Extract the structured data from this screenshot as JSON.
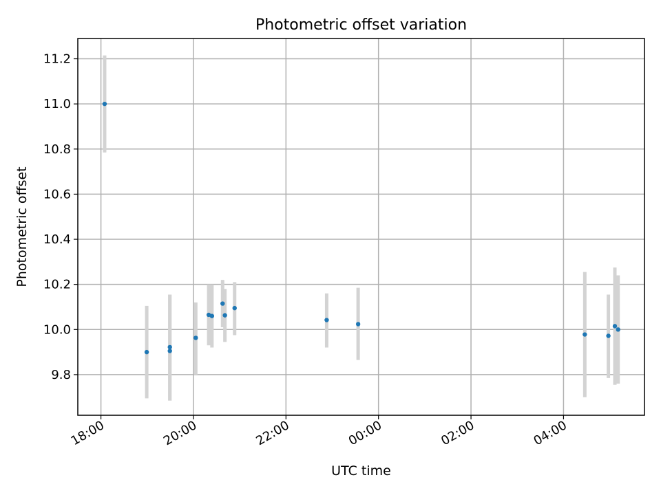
{
  "chart_data": {
    "type": "scatter",
    "title": "Photometric offset variation",
    "xlabel": "UTC time",
    "ylabel": "Photometric offset",
    "x_unit": "hours since 18:00 UTC",
    "xlim": [
      -0.5,
      11.75
    ],
    "ylim": [
      9.62,
      11.29
    ],
    "grid": true,
    "colors": {
      "point": "#1f77b4",
      "errorbar": "#d3d3d3",
      "grid": "#b0b0b0"
    },
    "x_ticks": [
      {
        "value": 0,
        "label": "18:00"
      },
      {
        "value": 2,
        "label": "20:00"
      },
      {
        "value": 4,
        "label": "22:00"
      },
      {
        "value": 6,
        "label": "00:00"
      },
      {
        "value": 8,
        "label": "02:00"
      },
      {
        "value": 10,
        "label": "04:00"
      }
    ],
    "y_ticks": [
      {
        "value": 9.8,
        "label": "9.8"
      },
      {
        "value": 10.0,
        "label": "10.0"
      },
      {
        "value": 10.2,
        "label": "10.2"
      },
      {
        "value": 10.4,
        "label": "10.4"
      },
      {
        "value": 10.6,
        "label": "10.6"
      },
      {
        "value": 10.8,
        "label": "10.8"
      },
      {
        "value": 11.0,
        "label": "11.0"
      },
      {
        "value": 11.2,
        "label": "11.2"
      }
    ],
    "points": [
      {
        "x": 0.08,
        "y": 11.0,
        "ylow": 10.785,
        "yhigh": 11.215
      },
      {
        "x": 0.99,
        "y": 9.9,
        "ylow": 9.695,
        "yhigh": 10.105
      },
      {
        "x": 1.49,
        "y": 9.922,
        "ylow": 9.685,
        "yhigh": 10.155
      },
      {
        "x": 1.49,
        "y": 9.905,
        "ylow": 9.685,
        "yhigh": 10.155
      },
      {
        "x": 2.05,
        "y": 9.963,
        "ylow": 9.8,
        "yhigh": 10.12
      },
      {
        "x": 2.33,
        "y": 10.065,
        "ylow": 9.93,
        "yhigh": 10.2
      },
      {
        "x": 2.4,
        "y": 10.06,
        "ylow": 9.92,
        "yhigh": 10.2
      },
      {
        "x": 2.63,
        "y": 10.115,
        "ylow": 10.01,
        "yhigh": 10.22
      },
      {
        "x": 2.68,
        "y": 10.063,
        "ylow": 9.945,
        "yhigh": 10.18
      },
      {
        "x": 2.89,
        "y": 10.095,
        "ylow": 9.975,
        "yhigh": 10.21
      },
      {
        "x": 4.88,
        "y": 10.042,
        "ylow": 9.92,
        "yhigh": 10.16
      },
      {
        "x": 5.56,
        "y": 10.024,
        "ylow": 9.865,
        "yhigh": 10.185
      },
      {
        "x": 10.46,
        "y": 9.978,
        "ylow": 9.7,
        "yhigh": 10.255
      },
      {
        "x": 10.97,
        "y": 9.972,
        "ylow": 9.785,
        "yhigh": 10.155
      },
      {
        "x": 11.11,
        "y": 10.015,
        "ylow": 9.755,
        "yhigh": 10.275
      },
      {
        "x": 11.18,
        "y": 10.0,
        "ylow": 9.76,
        "yhigh": 10.24
      }
    ]
  }
}
